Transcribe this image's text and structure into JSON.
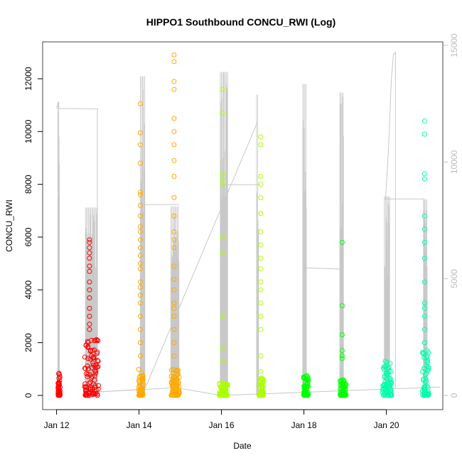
{
  "chart_data": {
    "type": "scatter",
    "title": "HIPPO1 Southbound CONCU_RWI (Log)",
    "xlabel": "Date",
    "ylabel": "CONCU_RWI",
    "x_unit": "days since Jan 12 00:00",
    "xlim": [
      -0.33,
      9.35
    ],
    "ylim": [
      -700,
      13300
    ],
    "y2lim": [
      -600,
      15100
    ],
    "x_ticks": [
      {
        "value": 0,
        "label": "Jan 12"
      },
      {
        "value": 2,
        "label": "Jan 14"
      },
      {
        "value": 4,
        "label": "Jan 16"
      },
      {
        "value": 6,
        "label": "Jan 18"
      },
      {
        "value": 8,
        "label": "Jan 20"
      }
    ],
    "y_ticks": [
      {
        "value": 0,
        "label": "0"
      },
      {
        "value": 2000,
        "label": "2000"
      },
      {
        "value": 4000,
        "label": "4000"
      },
      {
        "value": 6000,
        "label": "6000"
      },
      {
        "value": 8000,
        "label": "8000"
      },
      {
        "value": 10000,
        "label": "10000"
      },
      {
        "value": 12000,
        "label": "12000"
      }
    ],
    "y2_ticks": [
      {
        "value": 0,
        "label": "0"
      },
      {
        "value": 5000,
        "label": "5000"
      },
      {
        "value": 10000,
        "label": "10000"
      },
      {
        "value": 15000,
        "label": "15000"
      }
    ],
    "grid": false,
    "series_color_line": "#c8c8c8",
    "clusters": [
      {
        "day": 0.06,
        "spread": 0.05,
        "color": "#FF0000",
        "dense_max": 850,
        "outliers": []
      },
      {
        "day": 0.85,
        "spread": 0.34,
        "color": "#FF0000",
        "dense_max": 2300,
        "outliers": [
          2500,
          2700,
          3000,
          3300,
          3700,
          4000,
          4300,
          4700,
          4900,
          5200,
          5400,
          5600,
          5800,
          5900
        ]
      },
      {
        "day": 2.05,
        "spread": 0.12,
        "color": "#FFAA00",
        "dense_max": 1000,
        "outliers": [
          1500,
          2000,
          2500,
          3000,
          3500,
          3800,
          4100,
          4300,
          4800,
          5000,
          5300,
          5600,
          5900,
          6200,
          6400,
          6800,
          7200,
          7600,
          7700,
          8800,
          9500,
          9950,
          11050
        ]
      },
      {
        "day": 2.88,
        "spread": 0.2,
        "color": "#FFAA00",
        "dense_max": 1000,
        "outliers": [
          1500,
          2000,
          2500,
          3000,
          3300,
          3500,
          4000,
          4400,
          4900,
          5600,
          5900,
          6200,
          6800,
          7500,
          8300,
          8900,
          9500,
          10000,
          10500,
          11600,
          11900,
          12650,
          12900
        ]
      },
      {
        "day": 4.05,
        "spread": 0.2,
        "color": "#AAFF00",
        "dense_max": 500,
        "outliers": [
          1300,
          1800,
          3000,
          5400,
          6000,
          8000,
          8200,
          8400,
          10700,
          11600
        ]
      },
      {
        "day": 4.97,
        "spread": 0.12,
        "color": "#AAFF00",
        "dense_max": 700,
        "outliers": [
          900,
          1500,
          2500,
          3000,
          3500,
          4000,
          4300,
          4800,
          5200,
          5700,
          6200,
          6900,
          7500,
          8000,
          8300,
          9500,
          9800
        ]
      },
      {
        "day": 6.05,
        "spread": 0.12,
        "color": "#00FF00",
        "dense_max": 850,
        "outliers": []
      },
      {
        "day": 6.95,
        "spread": 0.15,
        "color": "#00FF00",
        "dense_max": 600,
        "outliers": [
          1400,
          1500,
          1700,
          2300,
          3400,
          5800
        ]
      },
      {
        "day": 8.02,
        "spread": 0.22,
        "color": "#00FFAA",
        "dense_max": 1350,
        "outliers": []
      },
      {
        "day": 8.95,
        "spread": 0.15,
        "color": "#00FFAA",
        "dense_max": 1700,
        "outliers": [
          2000,
          2500,
          3000,
          3300,
          3500,
          4300,
          5200,
          5800,
          6300,
          6800,
          8200,
          8400,
          9900,
          10400
        ]
      }
    ],
    "line_paths_y2": [
      [
        [
          0.0,
          12310
        ],
        [
          0.04,
          12550
        ],
        [
          0.06,
          12300
        ],
        [
          0.99,
          12280
        ],
        [
          0.99,
          150
        ],
        [
          2.14,
          270
        ],
        [
          2.14,
          8180
        ],
        [
          2.97,
          8180
        ]
      ],
      [
        [
          2.14,
          270
        ],
        [
          4.87,
          11700
        ]
      ],
      [
        [
          4.0,
          9030
        ],
        [
          4.94,
          9030
        ]
      ],
      [
        [
          4.0,
          0
        ],
        [
          9.31,
          360
        ]
      ],
      [
        [
          0.99,
          150
        ],
        [
          2.9,
          330
        ],
        [
          4.0,
          0
        ]
      ],
      [
        [
          6.0,
          5470
        ],
        [
          6.96,
          5410
        ]
      ],
      [
        [
          7.95,
          8420
        ],
        [
          8.93,
          8420
        ]
      ],
      [
        [
          7.98,
          8420
        ],
        [
          8.05,
          10500
        ],
        [
          8.12,
          13500
        ],
        [
          8.17,
          14600
        ],
        [
          8.22,
          14700
        ],
        [
          8.22,
          300
        ]
      ]
    ],
    "spike_bundles_y2": [
      {
        "start": 0.03,
        "end": 0.07,
        "max": 12600
      },
      {
        "start": 0.7,
        "end": 0.99,
        "max": 8050
      },
      {
        "start": 2.03,
        "end": 2.14,
        "max": 13680
      },
      {
        "start": 2.77,
        "end": 2.97,
        "max": 8100
      },
      {
        "start": 3.97,
        "end": 4.15,
        "max": 13860
      },
      {
        "start": 4.85,
        "end": 4.9,
        "max": 12890
      },
      {
        "start": 5.97,
        "end": 6.06,
        "max": 13340
      },
      {
        "start": 6.87,
        "end": 6.96,
        "max": 12980
      },
      {
        "start": 7.95,
        "end": 8.08,
        "max": 8530
      },
      {
        "start": 8.9,
        "end": 8.99,
        "max": 8400
      }
    ]
  }
}
